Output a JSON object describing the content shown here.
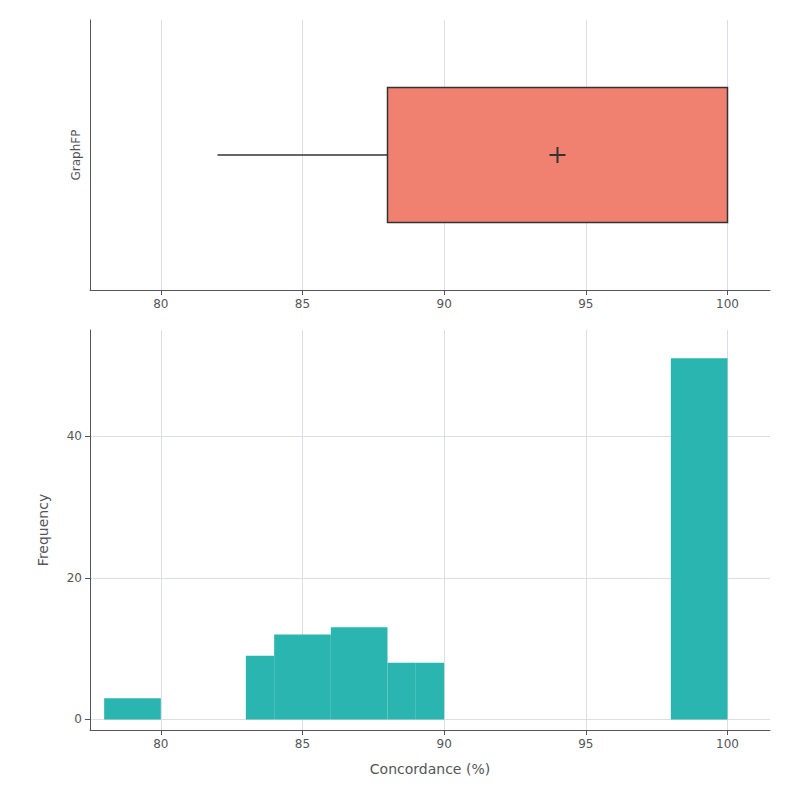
{
  "chart_data": [
    {
      "type": "box",
      "categories": [
        "GraphFP"
      ],
      "whisker_low": 82.0,
      "q1": 88.0,
      "mean": 94.0,
      "q3": 100.0,
      "color": "#f08070",
      "xlim": [
        77.5,
        101.5
      ],
      "xticks": [
        80,
        85,
        90,
        95,
        100
      ],
      "grid": true
    },
    {
      "type": "histogram",
      "bin_lefts": [
        78,
        83,
        84,
        86,
        88,
        89,
        98
      ],
      "bin_rights": [
        80,
        84,
        86,
        88,
        89,
        90,
        100
      ],
      "values": [
        3,
        9,
        12,
        13,
        8,
        8,
        51
      ],
      "color": "#2ab5b0",
      "xlabel": "Concordance (%)",
      "ylabel": "Frequency",
      "xlim": [
        77.5,
        101.5
      ],
      "xticks": [
        80,
        85,
        90,
        95,
        100
      ],
      "ylim": [
        -1.5,
        55
      ],
      "yticks": [
        0,
        20,
        40
      ],
      "grid": true
    }
  ]
}
